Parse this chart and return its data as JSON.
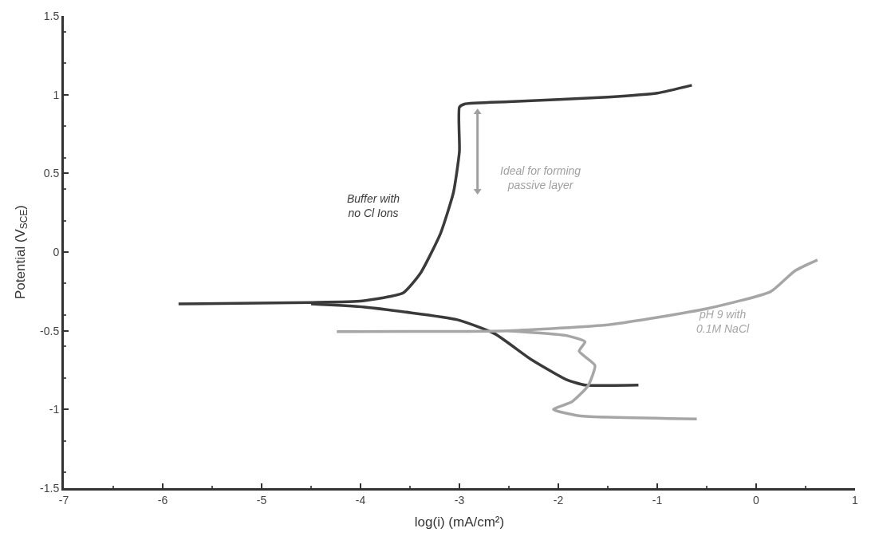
{
  "chart_data": {
    "type": "line",
    "xlabel": "log(i) (mA/cm²)",
    "ylabel": "Potential (V$_{SCE}$)",
    "xlim": [
      -7,
      1
    ],
    "xticks": [
      -7,
      -6,
      -5,
      -4,
      -3,
      -2,
      -1,
      0,
      1
    ],
    "ylim": [
      -1.5,
      1.5
    ],
    "yticks": [
      -1.5,
      -1,
      -0.5,
      0,
      0.5,
      1,
      1.5
    ],
    "legend": false,
    "marker": "none",
    "line_style": "solid",
    "series": [
      {
        "name": "Buffer with\nno Cl Ions",
        "color": "#3a3a3a",
        "x": [
          -5.84,
          -4.5,
          -3.98,
          -3.57,
          -3.39,
          -3.19,
          -3.06,
          -3.0,
          -3.0,
          -2.95,
          -2.5,
          -1.5,
          -1.0,
          -0.65
        ],
        "values": [
          -0.33,
          -0.32,
          -0.31,
          -0.26,
          -0.13,
          0.12,
          0.38,
          0.64,
          0.92,
          0.94,
          0.955,
          0.985,
          1.01,
          1.06
        ]
      },
      {
        "color": "#3a3a3a",
        "x": [
          -4.5,
          -3.96,
          -3.02,
          -2.64,
          -2.28,
          -1.92,
          -1.73,
          -1.19
        ],
        "values": [
          -0.33,
          -0.35,
          -0.43,
          -0.52,
          -0.68,
          -0.81,
          -0.845,
          -0.845
        ]
      },
      {
        "name": "pH 9 with\n0.1M NaCl",
        "color": "#a6a6a6",
        "x": [
          -4.24,
          -2.51,
          -1.47,
          -0.5,
          0.15,
          0.39,
          0.62
        ],
        "values": [
          -0.505,
          -0.5,
          -0.46,
          -0.36,
          -0.25,
          -0.12,
          -0.05
        ]
      },
      {
        "color": "#a6a6a6",
        "x": [
          -2.51,
          -1.92,
          -1.73,
          -1.79,
          -1.63,
          -1.7,
          -1.86,
          -2.05,
          -1.79,
          -0.6
        ],
        "values": [
          -0.5,
          -0.53,
          -0.57,
          -0.63,
          -0.72,
          -0.85,
          -0.95,
          -1.0,
          -1.04,
          -1.06
        ]
      }
    ],
    "annotations": [
      "Ideal for forming\npassive layer"
    ]
  }
}
